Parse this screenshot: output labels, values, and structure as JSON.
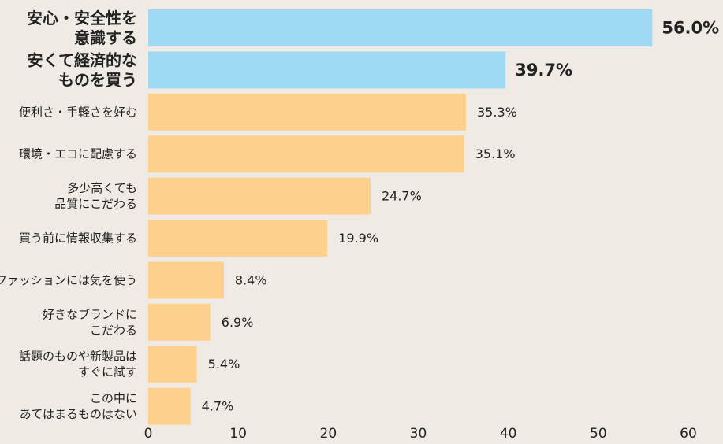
{
  "chart_data": {
    "type": "bar",
    "orientation": "horizontal",
    "categories": [
      [
        "安心・安全性を",
        "意識する"
      ],
      [
        "安くて経済的な",
        "ものを買う"
      ],
      [
        "便利さ・手軽さを好む"
      ],
      [
        "環境・エコに配慮する"
      ],
      [
        "多少高くても",
        "品質にこだわる"
      ],
      [
        "買う前に情報収集する"
      ],
      [
        "ファッションには気を使う"
      ],
      [
        "好きなブランドに",
        "こだわる"
      ],
      [
        "話題のものや新製品は",
        "すぐに試す"
      ],
      [
        "この中に",
        "あてはまるものはない"
      ]
    ],
    "values": [
      56.0,
      39.7,
      35.3,
      35.1,
      24.7,
      19.9,
      8.4,
      6.9,
      5.4,
      4.7
    ],
    "value_labels": [
      "56.0%",
      "39.7%",
      "35.3%",
      "35.1%",
      "24.7%",
      "19.9%",
      "8.4%",
      "6.9%",
      "5.4%",
      "4.7%"
    ],
    "highlighted": [
      true,
      true,
      false,
      false,
      false,
      false,
      false,
      false,
      false,
      false
    ],
    "xlim": [
      0,
      60
    ],
    "x_ticks": [
      "0",
      "10",
      "20",
      "30",
      "40",
      "50",
      "60"
    ],
    "grid": false,
    "colors": {
      "highlight": "#a0d9f4",
      "normal": "#fdd08e",
      "background": "#efebe4",
      "text": "#222222"
    }
  }
}
